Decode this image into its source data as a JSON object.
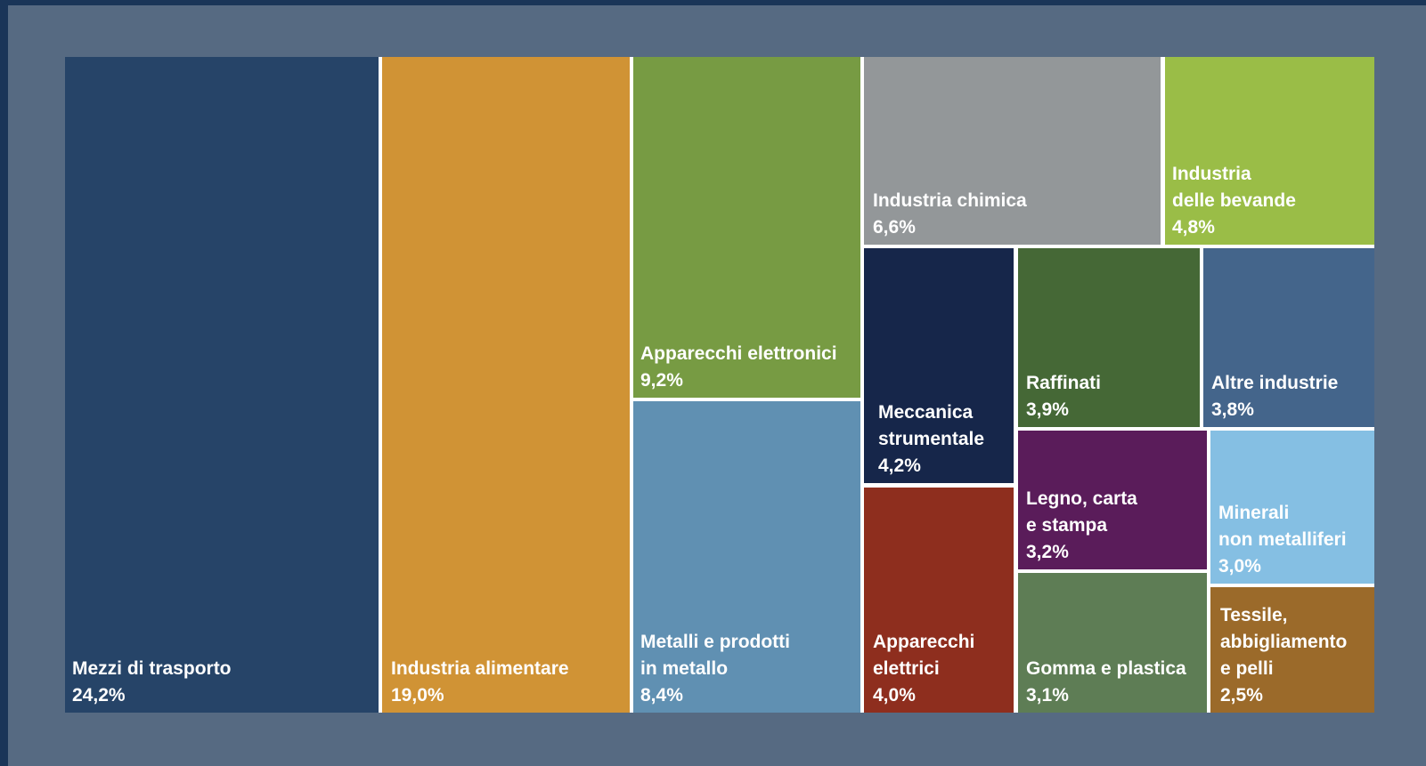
{
  "chart_data": {
    "type": "treemap",
    "title": "",
    "items": [
      {
        "name": [
          "Mezzi di trasporto"
        ],
        "value_label": "24,2%",
        "value": 24.2,
        "color": "#264468"
      },
      {
        "name": [
          "Industria alimentare"
        ],
        "value_label": "19,0%",
        "value": 19.0,
        "color": "#d09335"
      },
      {
        "name": [
          "Apparecchi elettronici"
        ],
        "value_label": "9,2%",
        "value": 9.2,
        "color": "#779b43"
      },
      {
        "name": [
          "Metalli e prodotti",
          "in metallo"
        ],
        "value_label": "8,4%",
        "value": 8.4,
        "color": "#6090b2"
      },
      {
        "name": [
          "Industria chimica"
        ],
        "value_label": "6,6%",
        "value": 6.6,
        "color": "#939799"
      },
      {
        "name": [
          "Industria",
          "delle bevande"
        ],
        "value_label": "4,8%",
        "value": 4.8,
        "color": "#9abd47"
      },
      {
        "name": [
          "Meccanica",
          "strumentale"
        ],
        "value_label": "4,2%",
        "value": 4.2,
        "color": "#16264a"
      },
      {
        "name": [
          "Apparecchi",
          "elettrici"
        ],
        "value_label": "4,0%",
        "value": 4.0,
        "color": "#8e2e1e"
      },
      {
        "name": [
          "Raffinati"
        ],
        "value_label": "3,9%",
        "value": 3.9,
        "color": "#456836"
      },
      {
        "name": [
          "Altre industrie"
        ],
        "value_label": "3,8%",
        "value": 3.8,
        "color": "#44658b"
      },
      {
        "name": [
          "Legno, carta",
          "e stampa"
        ],
        "value_label": "3,2%",
        "value": 3.2,
        "color": "#5a1c5a"
      },
      {
        "name": [
          "Minerali",
          "non metalliferi"
        ],
        "value_label": "3,0%",
        "value": 3.0,
        "color": "#85bfe3"
      },
      {
        "name": [
          "Gomma e plastica"
        ],
        "value_label": "3,1%",
        "value": 3.1,
        "color": "#5e7d55"
      },
      {
        "name": [
          "Tessile,",
          "abbigliamento",
          "e pelli"
        ],
        "value_label": "2,5%",
        "value": 2.5,
        "color": "#9b6a2a"
      }
    ]
  }
}
